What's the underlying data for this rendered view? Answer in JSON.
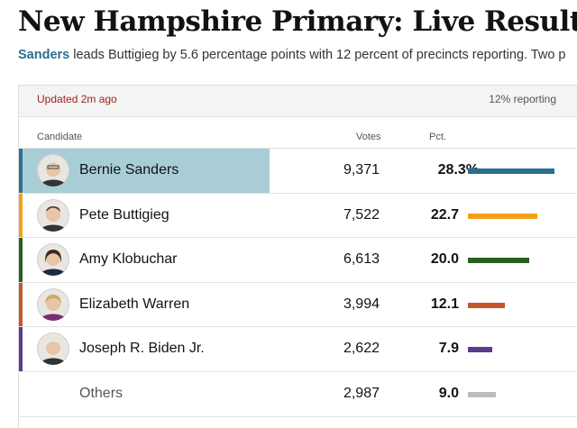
{
  "page": {
    "title": "New Hampshire Primary: Live Results",
    "summary_leader": "Sanders",
    "summary_rest": " leads Buttigieg by 5.6 percentage points with 12 percent of precincts reporting. Two p"
  },
  "status": {
    "updated": "Updated 2m ago",
    "reporting": "12% reporting"
  },
  "columns": {
    "candidate": "Candidate",
    "votes": "Votes",
    "pct": "Pct."
  },
  "candidates": [
    {
      "name": "Bernie Sanders",
      "votes": "9,371",
      "pct": "28.3%",
      "pct_value": 28.3,
      "color": "#2a6f8f",
      "avatar": "sanders-avatar",
      "leader": true
    },
    {
      "name": "Pete Buttigieg",
      "votes": "7,522",
      "pct": "22.7",
      "pct_value": 22.7,
      "color": "#f2a11a",
      "avatar": "buttigieg-avatar",
      "leader": false
    },
    {
      "name": "Amy Klobuchar",
      "votes": "6,613",
      "pct": "20.0",
      "pct_value": 20.0,
      "color": "#2a5e22",
      "avatar": "klobuchar-avatar",
      "leader": false
    },
    {
      "name": "Elizabeth Warren",
      "votes": "3,994",
      "pct": "12.1",
      "pct_value": 12.1,
      "color": "#c8552c",
      "avatar": "warren-avatar",
      "leader": false
    },
    {
      "name": "Joseph R. Biden Jr.",
      "votes": "2,622",
      "pct": "7.9",
      "pct_value": 7.9,
      "color": "#5b3b8c",
      "avatar": "biden-avatar",
      "leader": false
    },
    {
      "name": "Others",
      "votes": "2,987",
      "pct": "9.0",
      "pct_value": 9.0,
      "color": "#bdbdbd",
      "avatar": null,
      "leader": false
    }
  ]
}
